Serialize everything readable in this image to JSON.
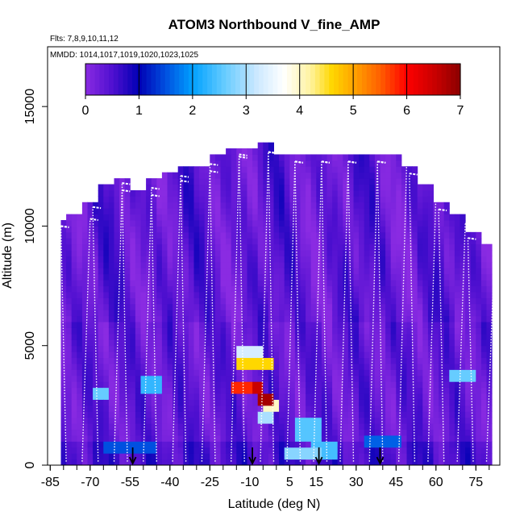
{
  "chart_data": {
    "type": "heatmap",
    "title": "ATOM3 Northbound V_fine_AMP",
    "flights_label": "Flts: 7,8,9,10,11,12",
    "dates_label": "MMDD: 1014,1017,1019,1020,1023,1025",
    "xlabel": "Latitude (deg N)",
    "ylabel": "Altitude (m)",
    "xlim": [
      -86,
      84
    ],
    "ylim": [
      0,
      17500
    ],
    "x_ticks": [
      -85,
      -70,
      -55,
      -40,
      -25,
      -10,
      5,
      15,
      30,
      45,
      60,
      75
    ],
    "y_ticks": [
      0,
      5000,
      10000,
      15000
    ],
    "colorbar": {
      "ticks": [
        0,
        1,
        2,
        3,
        4,
        5,
        6,
        7
      ],
      "range": [
        0,
        7
      ],
      "stops": [
        {
          "v": 0.0,
          "color": "#8a2be2"
        },
        {
          "v": 0.5,
          "color": "#5010d0"
        },
        {
          "v": 1.0,
          "color": "#0000b4"
        },
        {
          "v": 1.5,
          "color": "#0050e0"
        },
        {
          "v": 2.0,
          "color": "#00a0ff"
        },
        {
          "v": 2.6,
          "color": "#66ccff"
        },
        {
          "v": 3.2,
          "color": "#cce8ff"
        },
        {
          "v": 3.7,
          "color": "#ffffff"
        },
        {
          "v": 4.2,
          "color": "#fff3a0"
        },
        {
          "v": 4.6,
          "color": "#ffd700"
        },
        {
          "v": 5.0,
          "color": "#ffa500"
        },
        {
          "v": 5.5,
          "color": "#ff6000"
        },
        {
          "v": 6.0,
          "color": "#ff0000"
        },
        {
          "v": 6.6,
          "color": "#c00000"
        },
        {
          "v": 7.0,
          "color": "#8b0000"
        }
      ]
    },
    "columns": [
      {
        "lat": -82,
        "top": 10200
      },
      {
        "lat": -76,
        "top": 10500
      },
      {
        "lat": -70,
        "top": 11000
      },
      {
        "lat": -64,
        "top": 11700
      },
      {
        "lat": -58,
        "top": 12000
      },
      {
        "lat": -52,
        "top": 11500
      },
      {
        "lat": -46,
        "top": 11800
      },
      {
        "lat": -40,
        "top": 12100
      },
      {
        "lat": -34,
        "top": 12300
      },
      {
        "lat": -28,
        "top": 12500
      },
      {
        "lat": -22,
        "top": 12800
      },
      {
        "lat": -16,
        "top": 13100
      },
      {
        "lat": -10,
        "top": 13200
      },
      {
        "lat": -4,
        "top": 13300
      },
      {
        "lat": 2,
        "top": 12900
      },
      {
        "lat": 8,
        "top": 12900
      },
      {
        "lat": 14,
        "top": 12900
      },
      {
        "lat": 20,
        "top": 12900
      },
      {
        "lat": 26,
        "top": 12900
      },
      {
        "lat": 32,
        "top": 12900
      },
      {
        "lat": 38,
        "top": 12900
      },
      {
        "lat": 44,
        "top": 12900
      },
      {
        "lat": 50,
        "top": 12400
      },
      {
        "lat": 56,
        "top": 11600
      },
      {
        "lat": 62,
        "top": 10900
      },
      {
        "lat": 68,
        "top": 10300
      },
      {
        "lat": 74,
        "top": 9700
      },
      {
        "lat": 80,
        "top": 9200
      }
    ],
    "hotspots": [
      {
        "lat": -10,
        "alt": 4700,
        "w": 10,
        "h": 450,
        "value": 3.3
      },
      {
        "lat": -8,
        "alt": 4250,
        "w": 12,
        "h": 450,
        "value": 4.6
      },
      {
        "lat": -12,
        "alt": 3300,
        "w": 8,
        "h": 500,
        "value": 5.8
      },
      {
        "lat": -7,
        "alt": 3300,
        "w": 5,
        "h": 500,
        "value": 6.5
      },
      {
        "lat": -4,
        "alt": 2850,
        "w": 6,
        "h": 500,
        "value": 6.8
      },
      {
        "lat": -2,
        "alt": 2500,
        "w": 6,
        "h": 450,
        "value": 4.0
      },
      {
        "lat": -4,
        "alt": 2000,
        "w": 6,
        "h": 500,
        "value": 3.0
      },
      {
        "lat": -66,
        "alt": 3000,
        "w": 6,
        "h": 600,
        "value": 2.6
      },
      {
        "lat": -47,
        "alt": 3300,
        "w": 6,
        "h": 700,
        "value": 2.3
      },
      {
        "lat": 12,
        "alt": 1500,
        "w": 10,
        "h": 1200,
        "value": 2.5
      },
      {
        "lat": 10,
        "alt": 500,
        "w": 14,
        "h": 600,
        "value": 2.8
      },
      {
        "lat": 18,
        "alt": 600,
        "w": 8,
        "h": 600,
        "value": 2.4
      },
      {
        "lat": 70,
        "alt": 3800,
        "w": 10,
        "h": 500,
        "value": 2.6
      },
      {
        "lat": -55,
        "alt": 700,
        "w": 20,
        "h": 400,
        "value": 1.5
      },
      {
        "lat": 40,
        "alt": 900,
        "w": 12,
        "h": 500,
        "value": 1.6
      }
    ],
    "flight_tracks_lat": [
      -84,
      -79,
      -73,
      -67,
      -61,
      -56,
      -50,
      -45,
      -39,
      -34,
      -28,
      -23,
      -17,
      -12,
      -6,
      -1,
      4,
      9,
      14,
      19,
      24,
      29,
      35,
      40,
      46,
      52,
      57,
      63,
      68,
      74,
      79
    ],
    "arrows_lat": [
      -54,
      -9,
      16,
      39
    ]
  }
}
